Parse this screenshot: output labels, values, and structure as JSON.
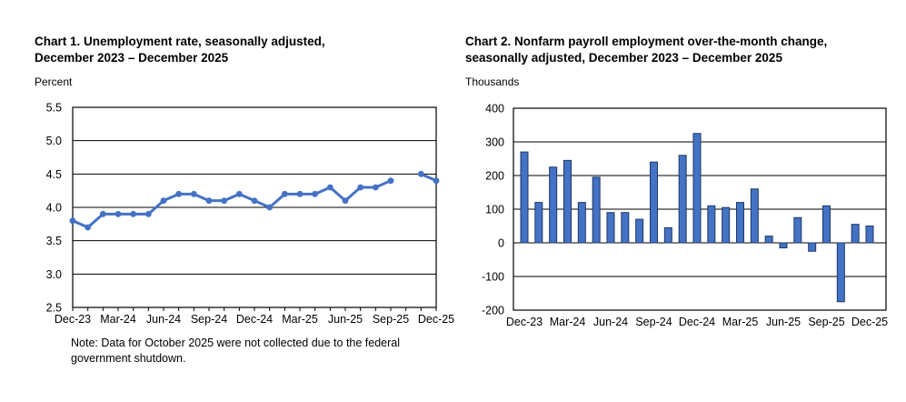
{
  "page": {
    "background": "#ffffff",
    "source_style": "BLS Employment Situation news release charts"
  },
  "colors": {
    "series_blue": "#4472C4",
    "bar_border": "#1F3864",
    "axis": "#000000",
    "text": "#000000"
  },
  "months": [
    "Dec-23",
    "Jan-24",
    "Feb-24",
    "Mar-24",
    "Apr-24",
    "May-24",
    "Jun-24",
    "Jul-24",
    "Aug-24",
    "Sep-24",
    "Oct-24",
    "Nov-24",
    "Dec-24",
    "Jan-25",
    "Feb-25",
    "Mar-25",
    "Apr-25",
    "May-25",
    "Jun-25",
    "Jul-25",
    "Aug-25",
    "Sep-25",
    "Oct-25",
    "Nov-25",
    "Dec-25"
  ],
  "chart_data": [
    {
      "type": "line",
      "title_lines": [
        "Chart 1. Unemployment rate, seasonally adjusted,",
        "December 2023 – December 2025"
      ],
      "unit_label": "Percent",
      "categories": [
        "Dec-23",
        "Jan-24",
        "Feb-24",
        "Mar-24",
        "Apr-24",
        "May-24",
        "Jun-24",
        "Jul-24",
        "Aug-24",
        "Sep-24",
        "Oct-24",
        "Nov-24",
        "Dec-24",
        "Jan-25",
        "Feb-25",
        "Mar-25",
        "Apr-25",
        "May-25",
        "Jun-25",
        "Jul-25",
        "Aug-25",
        "Sep-25",
        "Oct-25",
        "Nov-25",
        "Dec-25"
      ],
      "values": [
        3.8,
        3.7,
        3.9,
        3.9,
        3.9,
        3.9,
        4.1,
        4.2,
        4.2,
        4.1,
        4.1,
        4.2,
        4.1,
        4.0,
        4.2,
        4.2,
        4.2,
        4.3,
        4.1,
        4.3,
        4.3,
        4.4,
        null,
        4.5,
        4.4
      ],
      "missing_data_months": [
        "Oct-25"
      ],
      "x_tick_labels": [
        "Dec-23",
        "Mar-24",
        "Jun-24",
        "Sep-24",
        "Dec-24",
        "Mar-25",
        "Jun-25",
        "Sep-25",
        "Dec-25"
      ],
      "y_tick_labels": [
        "5.5",
        "5.0",
        "4.5",
        "4.0",
        "3.5",
        "3.0",
        "2.5"
      ],
      "ylim": [
        2.5,
        5.5
      ],
      "ytick_step": 0.5,
      "grid": "horizontal",
      "legend": "none",
      "note_lines": [
        "Note: Data for October 2025 were not collected due to the federal",
        "government shutdown."
      ]
    },
    {
      "type": "bar",
      "title_lines": [
        "Chart 2. Nonfarm payroll employment over-the-month change,",
        "seasonally adjusted, December 2023 – December 2025"
      ],
      "unit_label": "Thousands",
      "categories": [
        "Dec-23",
        "Jan-24",
        "Feb-24",
        "Mar-24",
        "Apr-24",
        "May-24",
        "Jun-24",
        "Jul-24",
        "Aug-24",
        "Sep-24",
        "Oct-24",
        "Nov-24",
        "Dec-24",
        "Jan-25",
        "Feb-25",
        "Mar-25",
        "Apr-25",
        "May-25",
        "Jun-25",
        "Jul-25",
        "Aug-25",
        "Sep-25",
        "Oct-25",
        "Nov-25",
        "Dec-25"
      ],
      "values": [
        270,
        120,
        225,
        245,
        120,
        195,
        90,
        90,
        70,
        240,
        45,
        260,
        325,
        110,
        105,
        120,
        160,
        20,
        -15,
        75,
        -25,
        110,
        -175,
        55,
        50
      ],
      "x_tick_labels": [
        "Dec-23",
        "Mar-24",
        "Jun-24",
        "Sep-24",
        "Dec-24",
        "Mar-25",
        "Jun-25",
        "Sep-25",
        "Dec-25"
      ],
      "y_tick_labels": [
        "400",
        "300",
        "200",
        "100",
        "0",
        "-100",
        "-200"
      ],
      "ylim": [
        -200,
        400
      ],
      "ytick_step": 100,
      "grid": "horizontal",
      "legend": "none"
    }
  ]
}
